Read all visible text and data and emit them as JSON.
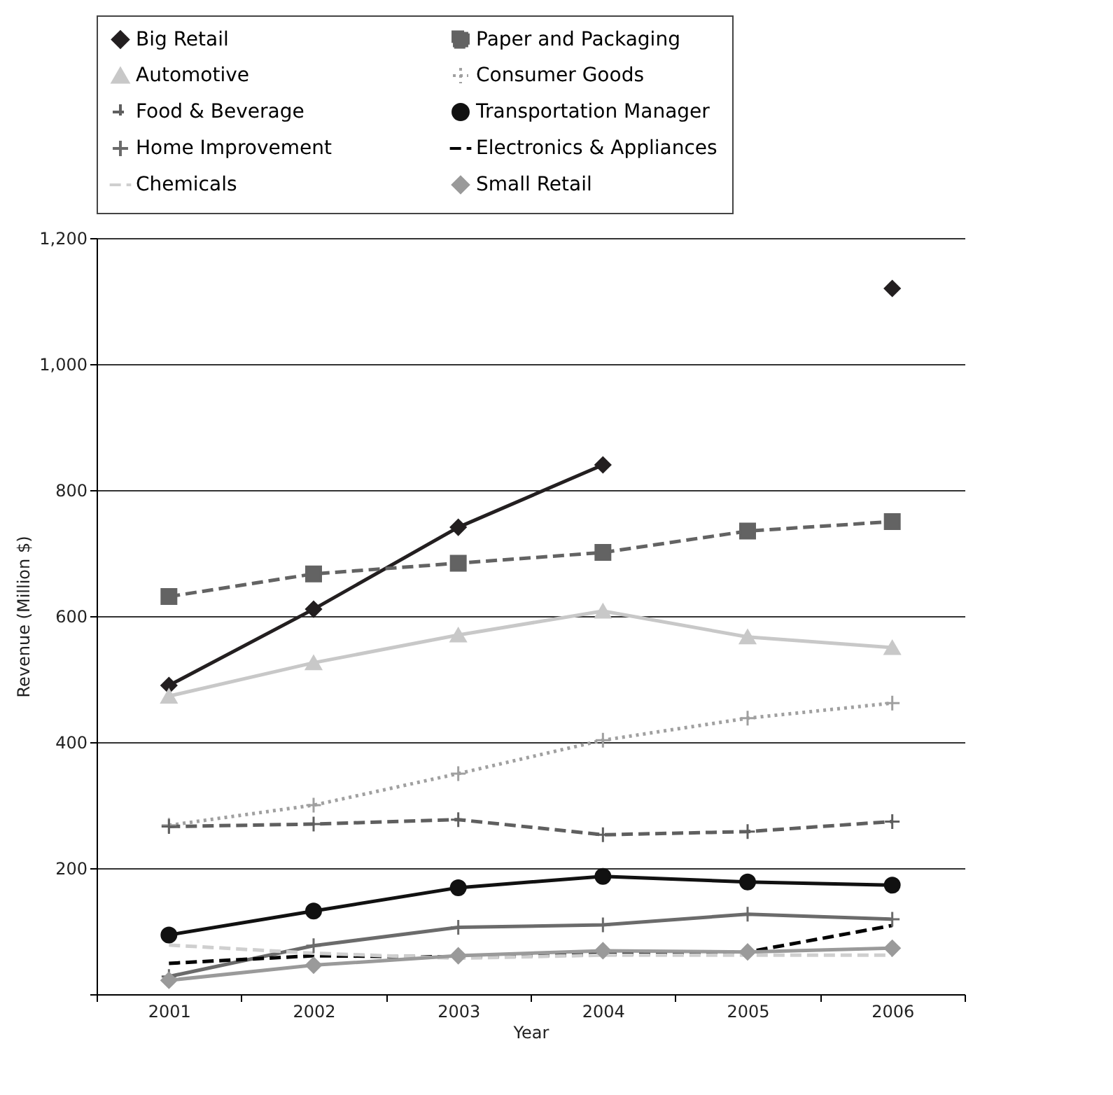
{
  "chart_data": {
    "type": "line",
    "xlabel": "Year",
    "ylabel": "Revenue (Million $)",
    "categories": [
      "2001",
      "2002",
      "2003",
      "2004",
      "2005",
      "2006"
    ],
    "ylim": [
      0,
      1200
    ],
    "yticks": [
      {
        "value": 0,
        "label": null
      },
      200,
      400,
      600,
      800,
      {
        "value": 1000,
        "label": "1,000"
      },
      {
        "value": 1200,
        "label": "1,200"
      }
    ],
    "grid": "y",
    "legend": "top",
    "series": [
      {
        "name": "Big Retail",
        "color": "#231f20",
        "marker": "diamond",
        "line_style": "solid",
        "values": [
          490,
          611,
          741,
          840,
          null,
          1120
        ]
      },
      {
        "name": "Paper and Packaging",
        "color": "#636363",
        "marker": "square",
        "line_style": "dashed",
        "values": [
          631,
          667,
          684,
          701,
          735,
          750
        ]
      },
      {
        "name": "Automotive",
        "color": "#c8c8c8",
        "marker": "triangle",
        "line_style": "solid",
        "values": [
          473,
          526,
          570,
          608,
          567,
          550
        ]
      },
      {
        "name": "Consumer Goods",
        "color": "#a0a0a0",
        "marker": "cross",
        "line_style": "dotted",
        "values": [
          268,
          300,
          350,
          403,
          438,
          462
        ]
      },
      {
        "name": "Food & Beverage",
        "color": "#5f5f5f",
        "marker": "cross",
        "line_style": "dashed",
        "values": [
          266,
          270,
          277,
          253,
          258,
          274
        ]
      },
      {
        "name": "Transportation Manager",
        "color": "#111111",
        "marker": "circle",
        "line_style": "solid",
        "values": [
          94,
          132,
          169,
          187,
          178,
          173
        ]
      },
      {
        "name": "Home Improvement",
        "color": "#6b6b6b",
        "marker": "cross",
        "line_style": "solid",
        "values": [
          28,
          77,
          106,
          110,
          127,
          119
        ]
      },
      {
        "name": "Electronics & Appliances",
        "color": "#000000",
        "marker": "none",
        "line_style": "dashed",
        "values": [
          49,
          61,
          59,
          63,
          67,
          109
        ]
      },
      {
        "name": "Chemicals",
        "color": "#cfcfcf",
        "marker": "none",
        "line_style": "dashed",
        "values": [
          78,
          65,
          57,
          62,
          62,
          62
        ]
      },
      {
        "name": "Small Retail",
        "color": "#9a9a9a",
        "marker": "diamond",
        "line_style": "solid",
        "values": [
          22,
          46,
          61,
          69,
          67,
          73
        ]
      }
    ]
  }
}
